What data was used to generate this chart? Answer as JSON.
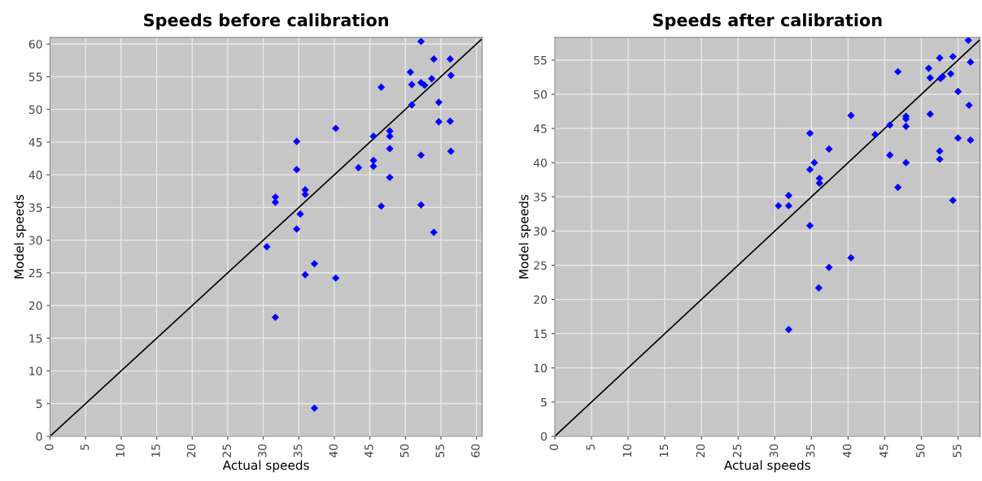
{
  "chart_data": [
    {
      "type": "scatter",
      "title": "Speeds before calibration",
      "xlabel": "Actual speeds",
      "ylabel": "Model speeds",
      "xlim": [
        0,
        60.8
      ],
      "ylim": [
        0,
        61
      ],
      "xticks": [
        0,
        5,
        10,
        15,
        20,
        25,
        30,
        35,
        40,
        45,
        50,
        55,
        60
      ],
      "yticks": [
        0,
        5,
        10,
        15,
        20,
        25,
        30,
        35,
        40,
        45,
        50,
        55,
        60
      ],
      "grid": true,
      "marker": "diamond",
      "series": [
        {
          "color": "#0000ff",
          "x": [
            52.2,
            54.0,
            56.3,
            50.7,
            56.4,
            50.9,
            52.2,
            52.7,
            53.7,
            46.6,
            50.9,
            54.7,
            54.7,
            56.3,
            40.2,
            45.5,
            47.8,
            47.8,
            47.8,
            56.4,
            34.7,
            52.2,
            34.7,
            43.4,
            45.5,
            45.5,
            47.8,
            35.9,
            35.9,
            31.7,
            31.7,
            35.2,
            46.6,
            52.2,
            34.7,
            54.0,
            30.5,
            37.2,
            35.9,
            40.2,
            31.7,
            37.2
          ],
          "values": [
            60.4,
            57.7,
            57.7,
            55.7,
            55.2,
            53.8,
            54.1,
            53.7,
            54.7,
            53.4,
            50.7,
            51.1,
            48.1,
            48.2,
            47.1,
            45.9,
            46.7,
            45.9,
            44.0,
            43.6,
            45.1,
            43.0,
            40.8,
            41.1,
            42.2,
            41.3,
            39.6,
            37.7,
            37.0,
            36.6,
            35.8,
            34.0,
            35.2,
            35.4,
            31.7,
            31.2,
            29.0,
            26.4,
            24.7,
            24.2,
            18.2,
            4.3
          ]
        },
        {
          "type": "line",
          "color": "#000000",
          "marker": "none",
          "x": [
            0,
            60.8
          ],
          "values": [
            0,
            60.8
          ]
        }
      ]
    },
    {
      "type": "scatter",
      "title": "Speeds after calibration",
      "xlabel": "Actual speeds",
      "ylabel": "Model speeds",
      "xlim": [
        0,
        58
      ],
      "ylim": [
        0,
        58.3
      ],
      "xticks": [
        0,
        5,
        10,
        15,
        20,
        25,
        30,
        35,
        40,
        45,
        50,
        55
      ],
      "yticks": [
        0,
        5,
        10,
        15,
        20,
        25,
        30,
        35,
        40,
        45,
        50,
        55
      ],
      "grid": true,
      "marker": "diamond",
      "series": [
        {
          "color": "#0000ff",
          "x": [
            56.4,
            52.5,
            54.3,
            56.7,
            51.0,
            46.8,
            51.2,
            52.6,
            52.9,
            54.0,
            55.0,
            56.5,
            40.4,
            47.9,
            47.9,
            51.2,
            45.7,
            47.9,
            43.7,
            34.8,
            55.0,
            56.7,
            37.4,
            52.5,
            52.5,
            45.7,
            47.9,
            35.4,
            34.8,
            36.1,
            36.1,
            46.8,
            31.9,
            30.5,
            31.9,
            54.3,
            34.8,
            37.4,
            36.0,
            40.4,
            31.9
          ],
          "values": [
            57.9,
            55.3,
            55.5,
            54.7,
            53.8,
            53.3,
            52.4,
            52.3,
            52.6,
            53.0,
            50.4,
            48.4,
            46.9,
            46.8,
            46.4,
            47.1,
            45.5,
            45.3,
            44.1,
            44.3,
            43.6,
            43.3,
            42.0,
            41.7,
            40.5,
            41.1,
            40.0,
            40.0,
            39.0,
            37.7,
            37.0,
            36.4,
            35.2,
            33.7,
            33.7,
            34.5,
            30.8,
            24.7,
            21.7,
            26.1,
            15.6
          ]
        },
        {
          "type": "line",
          "color": "#000000",
          "marker": "none",
          "x": [
            0,
            58
          ],
          "values": [
            0,
            58
          ]
        }
      ]
    }
  ]
}
